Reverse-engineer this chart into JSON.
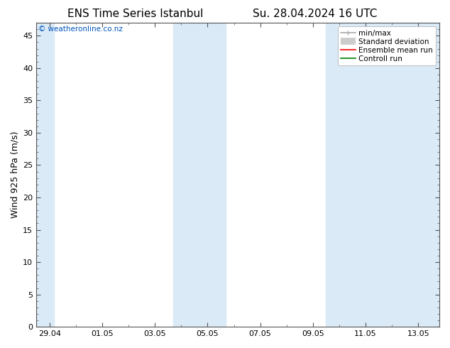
{
  "title_left": "ENS Time Series Istanbul",
  "title_right": "Su. 28.04.2024 16 UTC",
  "ylabel": "Wind 925 hPa (m/s)",
  "watermark": "© weatheronline.co.nz",
  "ylim": [
    0,
    47
  ],
  "yticks": [
    0,
    5,
    10,
    15,
    20,
    25,
    30,
    35,
    40,
    45
  ],
  "xtick_labels": [
    "29.04",
    "01.05",
    "03.05",
    "05.05",
    "07.05",
    "09.05",
    "11.05",
    "13.05"
  ],
  "shaded_color": "#daeaf7",
  "background_color": "#ffffff",
  "plot_bg_color": "#ffffff",
  "legend_items": [
    {
      "label": "min/max",
      "color": "#aaaaaa",
      "lw": 1.2
    },
    {
      "label": "Standard deviation",
      "color": "#cccccc",
      "lw": 7
    },
    {
      "label": "Ensemble mean run",
      "color": "#ff0000",
      "lw": 1.2
    },
    {
      "label": "Controll run",
      "color": "#008000",
      "lw": 1.2
    }
  ],
  "watermark_color": "#0055bb",
  "title_fontsize": 11,
  "axis_label_fontsize": 9,
  "tick_fontsize": 8,
  "legend_fontsize": 7.5
}
